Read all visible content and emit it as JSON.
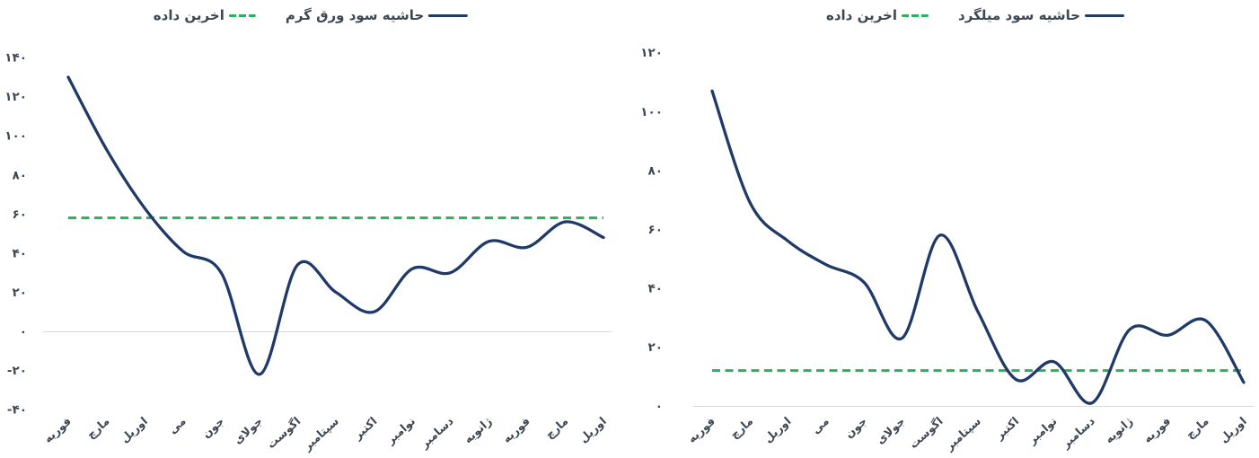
{
  "charts": [
    {
      "name": "hot-rolled-sheet-margin",
      "legend": [
        {
          "label": "اخرین داده",
          "swatch": "dashed",
          "color": "#2bb05c"
        },
        {
          "label": "حاشیه سود ورق گرم",
          "swatch": "solid",
          "color": "#1f3a68"
        }
      ],
      "chart_data": {
        "type": "line",
        "categories": [
          "فوریه",
          "مارچ",
          "اوریل",
          "می",
          "جون",
          "جولای",
          "اگوست",
          "سپتامبر",
          "اکتبر",
          "نوامبر",
          "دسامبر",
          "ژانویه",
          "فوریه",
          "مارچ",
          "اوریل"
        ],
        "series": [
          {
            "name": "حاشیه سود ورق گرم",
            "style": "solid",
            "color": "#1f3a68",
            "values": [
              130,
              93,
              63,
              41,
              30,
              -22,
              34,
              20,
              10,
              32,
              30,
              46,
              43,
              56,
              48
            ]
          },
          {
            "name": "اخرین داده",
            "style": "dashed",
            "color": "#2bb05c",
            "constant": 58
          }
        ],
        "ylim": [
          -40,
          140
        ],
        "ytick_values": [
          140,
          120,
          100,
          80,
          60,
          40,
          20,
          0,
          -20,
          -40
        ],
        "ytick_labels": [
          "۱۴۰",
          "۱۲۰",
          "۱۰۰",
          "۸۰",
          "۶۰",
          "۴۰",
          "۲۰",
          "۰",
          "-۲۰",
          "-۴۰"
        ],
        "xlabel": "",
        "ylabel": "",
        "grid": "zero-line-only",
        "legend_position": "top-center"
      }
    },
    {
      "name": "rebar-margin",
      "legend": [
        {
          "label": "اخرین داده",
          "swatch": "dashed",
          "color": "#2bb05c"
        },
        {
          "label": "حاشیه سود میلگرد",
          "swatch": "solid",
          "color": "#1f3a68"
        }
      ],
      "chart_data": {
        "type": "line",
        "categories": [
          "فوریه",
          "مارچ",
          "اوریل",
          "می",
          "جون",
          "جولای",
          "اگوست",
          "سپتامبر",
          "اکتبر",
          "نوامبر",
          "دسامبر",
          "ژانویه",
          "فوریه",
          "مارچ",
          "اوریل"
        ],
        "series": [
          {
            "name": "حاشیه سود میلگرد",
            "style": "solid",
            "color": "#1f3a68",
            "values": [
              107,
              69,
              56,
              48,
              42,
              23,
              58,
              32,
              9,
              15,
              1,
              26,
              24,
              29,
              8
            ]
          },
          {
            "name": "اخرین داده",
            "style": "dashed",
            "color": "#2bb05c",
            "constant": 12
          }
        ],
        "ylim": [
          0,
          120
        ],
        "ytick_values": [
          120,
          100,
          80,
          60,
          40,
          20,
          0
        ],
        "ytick_labels": [
          "۱۲۰",
          "۱۰۰",
          "۸۰",
          "۶۰",
          "۴۰",
          "۲۰",
          "۰"
        ],
        "xlabel": "",
        "ylabel": "",
        "grid": "zero-line-only",
        "legend_position": "top-center"
      }
    }
  ]
}
